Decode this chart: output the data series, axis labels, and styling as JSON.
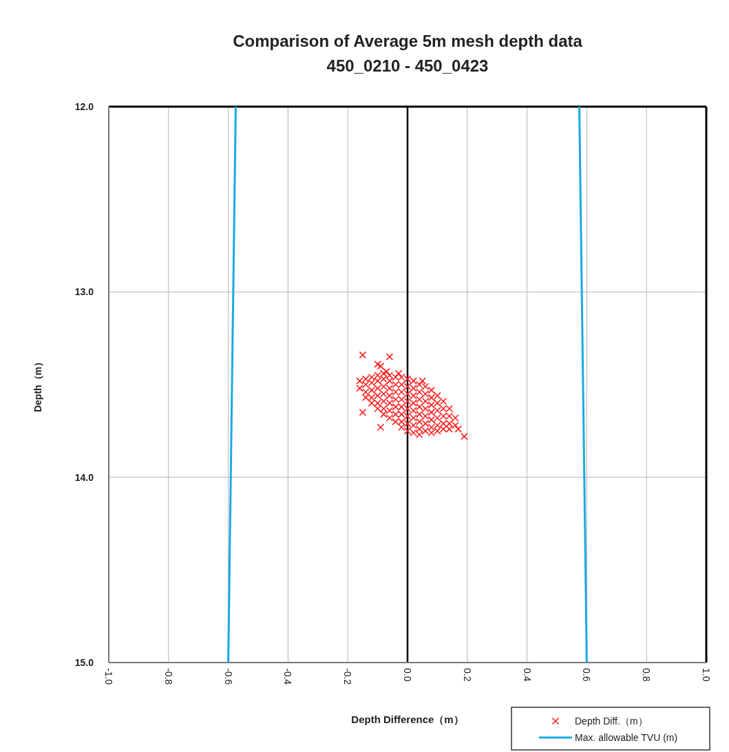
{
  "chart_data": {
    "type": "scatter",
    "title": "Comparison of Average 5m mesh depth data",
    "subtitle": "450_0210 - 450_0423",
    "xlabel": "Depth Difference（m）",
    "ylabel": "Depth（m）",
    "xlim": [
      -1,
      1
    ],
    "ylim": [
      15,
      12
    ],
    "xticks": [
      {
        "value": -1,
        "label": "-1.0"
      },
      {
        "value": -0.8,
        "label": "-0.8"
      },
      {
        "value": -0.6,
        "label": "-0.6"
      },
      {
        "value": -0.4,
        "label": "-0.4"
      },
      {
        "value": -0.2,
        "label": "-0.2"
      },
      {
        "value": 0,
        "label": "0.0"
      },
      {
        "value": 0.2,
        "label": "0.2"
      },
      {
        "value": 0.4,
        "label": "0.4"
      },
      {
        "value": 0.6,
        "label": "0.6"
      },
      {
        "value": 0.8,
        "label": "0.8"
      },
      {
        "value": 1,
        "label": "1.0"
      }
    ],
    "yticks": [
      {
        "value": 12,
        "label": "12.0"
      },
      {
        "value": 13,
        "label": "13.0"
      },
      {
        "value": 14,
        "label": "14.0"
      },
      {
        "value": 15,
        "label": "15.0"
      }
    ],
    "grid": true,
    "legend": "bottom right",
    "ref_lines": [
      {
        "axis": "x",
        "value": 0,
        "color": "#000000"
      }
    ],
    "series": [
      {
        "name": "Depth Diff.（m）",
        "marker": "cross",
        "color": "#ff2020",
        "x": [
          -0.16,
          -0.16,
          -0.14,
          -0.14,
          -0.14,
          -0.14,
          -0.12,
          -0.12,
          -0.12,
          -0.12,
          -0.12,
          -0.1,
          -0.1,
          -0.1,
          -0.1,
          -0.1,
          -0.1,
          -0.08,
          -0.08,
          -0.08,
          -0.08,
          -0.08,
          -0.08,
          -0.08,
          -0.06,
          -0.06,
          -0.06,
          -0.06,
          -0.06,
          -0.06,
          -0.06,
          -0.04,
          -0.04,
          -0.04,
          -0.04,
          -0.04,
          -0.04,
          -0.04,
          -0.02,
          -0.02,
          -0.02,
          -0.02,
          -0.02,
          -0.02,
          -0.02,
          -0.02,
          0,
          0,
          0,
          0,
          0,
          0,
          0,
          0,
          0.02,
          0.02,
          0.02,
          0.02,
          0.02,
          0.02,
          0.02,
          0.02,
          0.04,
          0.04,
          0.04,
          0.04,
          0.04,
          0.04,
          0.04,
          0.04,
          0.06,
          0.06,
          0.06,
          0.06,
          0.06,
          0.06,
          0.06,
          0.08,
          0.08,
          0.08,
          0.08,
          0.08,
          0.08,
          0.08,
          0.1,
          0.1,
          0.1,
          0.1,
          0.1,
          0.1,
          0.12,
          0.12,
          0.12,
          0.12,
          0.12,
          0.14,
          0.14,
          0.14,
          0.14,
          0.16,
          0.16,
          -0.15,
          -0.1,
          -0.06,
          -0.09,
          -0.07,
          -0.03,
          0.05,
          -0.15,
          -0.09,
          0.19,
          0.17
        ],
        "values": [
          13.48,
          13.52,
          13.47,
          13.5,
          13.54,
          13.57,
          13.46,
          13.49,
          13.53,
          13.57,
          13.6,
          13.45,
          13.48,
          13.52,
          13.56,
          13.6,
          13.63,
          13.44,
          13.47,
          13.51,
          13.55,
          13.59,
          13.63,
          13.66,
          13.45,
          13.48,
          13.52,
          13.56,
          13.6,
          13.64,
          13.68,
          13.46,
          13.5,
          13.54,
          13.58,
          13.62,
          13.66,
          13.7,
          13.46,
          13.5,
          13.54,
          13.58,
          13.62,
          13.66,
          13.7,
          13.73,
          13.47,
          13.51,
          13.55,
          13.59,
          13.63,
          13.67,
          13.71,
          13.75,
          13.48,
          13.52,
          13.56,
          13.6,
          13.64,
          13.68,
          13.72,
          13.76,
          13.5,
          13.54,
          13.58,
          13.62,
          13.66,
          13.7,
          13.74,
          13.77,
          13.51,
          13.55,
          13.59,
          13.63,
          13.67,
          13.71,
          13.75,
          13.53,
          13.57,
          13.61,
          13.65,
          13.69,
          13.73,
          13.76,
          13.56,
          13.6,
          13.64,
          13.68,
          13.72,
          13.75,
          13.59,
          13.63,
          13.67,
          13.71,
          13.74,
          13.63,
          13.67,
          13.71,
          13.74,
          13.68,
          13.72,
          13.34,
          13.39,
          13.35,
          13.4,
          13.43,
          13.44,
          13.48,
          13.65,
          13.73,
          13.78,
          13.74
        ]
      },
      {
        "name": "Max. allowable TVU (m)",
        "type": "line",
        "marker": "none",
        "color": "#1aaae0",
        "x": [
          -0.575,
          -0.6
        ],
        "values": [
          12,
          15
        ]
      },
      {
        "type": "line",
        "marker": "none",
        "color": "#1aaae0",
        "x": [
          0.575,
          0.6
        ],
        "values": [
          12,
          15
        ]
      }
    ]
  }
}
